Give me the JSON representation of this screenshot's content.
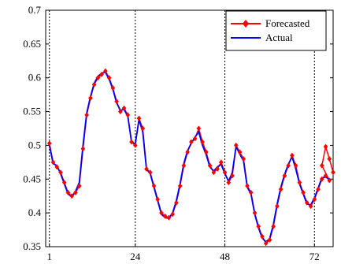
{
  "chart_data": {
    "type": "line",
    "title": "",
    "xlabel": "",
    "ylabel": "",
    "xlim": [
      0,
      77
    ],
    "ylim": [
      0.35,
      0.7
    ],
    "x_ticks": [
      1,
      24,
      48,
      72
    ],
    "y_ticks": [
      0.35,
      0.4,
      0.45,
      0.5,
      0.55,
      0.6,
      0.65,
      0.7
    ],
    "vlines": [
      1,
      24,
      48,
      72
    ],
    "grid": false,
    "legend_position": "top-right",
    "colors": {
      "forecasted": "#ff0000",
      "actual": "#0000ff"
    },
    "series": [
      {
        "name": "Forecasted",
        "marker": "diamond",
        "x": [
          1,
          2,
          3,
          4,
          5,
          6,
          7,
          8,
          9,
          10,
          11,
          12,
          13,
          14,
          15,
          16,
          17,
          18,
          19,
          20,
          21,
          22,
          23,
          24,
          25,
          26,
          27,
          28,
          29,
          30,
          31,
          32,
          33,
          34,
          35,
          36,
          37,
          38,
          39,
          40,
          41,
          42,
          43,
          44,
          45,
          46,
          47,
          48,
          49,
          50,
          51,
          52,
          53,
          54,
          55,
          56,
          57,
          58,
          59,
          60,
          61,
          62,
          63,
          64,
          65,
          66,
          67,
          68,
          69,
          70,
          71,
          72,
          73,
          74,
          75,
          76
        ],
        "values": [
          0.503,
          0.475,
          0.468,
          0.46,
          0.445,
          0.43,
          0.425,
          0.43,
          0.44,
          0.495,
          0.545,
          0.57,
          0.59,
          0.6,
          0.605,
          0.61,
          0.6,
          0.585,
          0.565,
          0.55,
          0.555,
          0.545,
          0.505,
          0.5,
          0.54,
          0.525,
          0.465,
          0.46,
          0.44,
          0.42,
          0.4,
          0.395,
          0.393,
          0.398,
          0.415,
          0.44,
          0.47,
          0.49,
          0.505,
          0.51,
          0.525,
          0.505,
          0.49,
          0.47,
          0.46,
          0.465,
          0.475,
          0.46,
          0.445,
          0.455,
          0.5,
          0.49,
          0.48,
          0.44,
          0.43,
          0.4,
          0.38,
          0.365,
          0.355,
          0.36,
          0.38,
          0.41,
          0.435,
          0.455,
          0.47,
          0.485,
          0.47,
          0.445,
          0.43,
          0.415,
          0.41,
          0.42,
          0.435,
          0.45,
          0.455,
          0.448
        ]
      },
      {
        "name": "Actual",
        "x": [
          1,
          2,
          3,
          4,
          5,
          6,
          7,
          8,
          9,
          10,
          11,
          12,
          13,
          14,
          15,
          16,
          17,
          18,
          19,
          20,
          21,
          22,
          23,
          24,
          25,
          26,
          27,
          28,
          29,
          30,
          31,
          32,
          33,
          34,
          35,
          36,
          37,
          38,
          39,
          40,
          41,
          42,
          43,
          44,
          45,
          46,
          47,
          48,
          49,
          50,
          51,
          52,
          53,
          54,
          55,
          56,
          57,
          58,
          59,
          60,
          61,
          62,
          63,
          64,
          65,
          66,
          67,
          68,
          69,
          70,
          71,
          72,
          73,
          74,
          75,
          76
        ],
        "values": [
          0.5,
          0.473,
          0.47,
          0.458,
          0.443,
          0.428,
          0.424,
          0.432,
          0.445,
          0.5,
          0.548,
          0.572,
          0.592,
          0.602,
          0.607,
          0.608,
          0.598,
          0.583,
          0.563,
          0.552,
          0.553,
          0.543,
          0.505,
          0.502,
          0.538,
          0.52,
          0.465,
          0.458,
          0.438,
          0.418,
          0.398,
          0.393,
          0.392,
          0.4,
          0.418,
          0.443,
          0.473,
          0.492,
          0.503,
          0.512,
          0.52,
          0.5,
          0.486,
          0.468,
          0.462,
          0.468,
          0.472,
          0.458,
          0.447,
          0.46,
          0.498,
          0.487,
          0.477,
          0.438,
          0.428,
          0.398,
          0.378,
          0.363,
          0.357,
          0.362,
          0.383,
          0.413,
          0.438,
          0.457,
          0.472,
          0.483,
          0.465,
          0.443,
          0.428,
          0.413,
          0.412,
          0.422,
          0.437,
          0.452,
          0.453,
          0.45
        ]
      }
    ],
    "tail_forecasted": [
      [
        74,
        0.47
      ],
      [
        75,
        0.498
      ],
      [
        76,
        0.48
      ],
      [
        77,
        0.46
      ]
    ]
  }
}
